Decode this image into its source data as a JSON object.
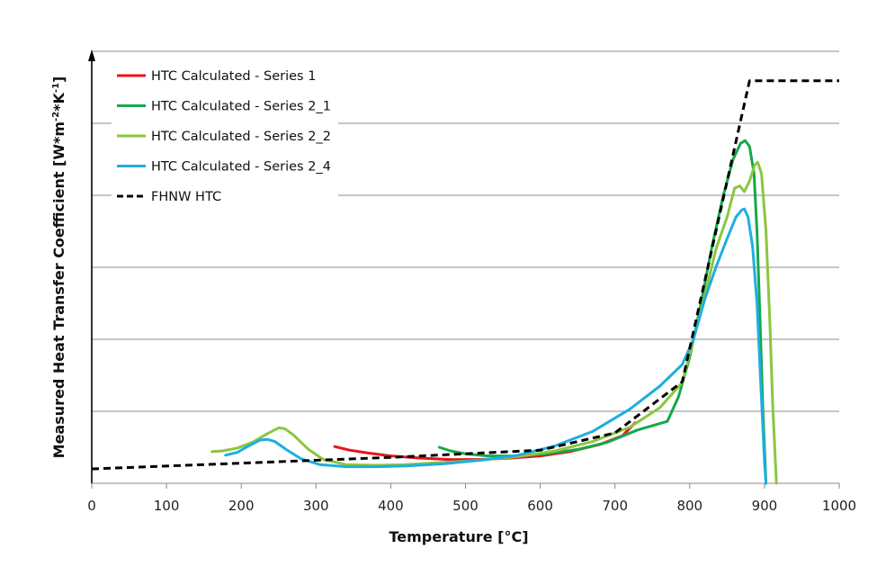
{
  "chart_data": {
    "type": "line",
    "title": "",
    "xlabel": "Temperature  [°C]",
    "ylabel_main": "Measured Heat Transfer Coefficient [W*m",
    "ylabel_sup1": "-2",
    "ylabel_mid": "*K",
    "ylabel_sup2": "-1",
    "ylabel_end": "]",
    "ylabel_note": "No y tick labels shown; y values are relative units where one gridline spacing = 1",
    "xlim": [
      0,
      1000
    ],
    "ylim": [
      0,
      6
    ],
    "xticks": [
      0,
      100,
      200,
      300,
      400,
      500,
      600,
      700,
      800,
      900,
      1000
    ],
    "ygrid": [
      1,
      2,
      3,
      4,
      5,
      6
    ],
    "grid": true,
    "legend_position": "top-left",
    "series": [
      {
        "name": "HTC Calculated - Series 1",
        "color": "#e8131b",
        "style": "solid",
        "points": [
          [
            325,
            0.51
          ],
          [
            345,
            0.46
          ],
          [
            370,
            0.42
          ],
          [
            400,
            0.38
          ],
          [
            440,
            0.35
          ],
          [
            480,
            0.33
          ],
          [
            520,
            0.33
          ],
          [
            560,
            0.35
          ],
          [
            600,
            0.38
          ],
          [
            640,
            0.44
          ],
          [
            680,
            0.54
          ],
          [
            710,
            0.66
          ],
          [
            727,
            0.84
          ]
        ]
      },
      {
        "name": "HTC Calculated - Series 2_1",
        "color": "#14a84a",
        "style": "solid",
        "points": [
          [
            465,
            0.5
          ],
          [
            480,
            0.45
          ],
          [
            500,
            0.41
          ],
          [
            530,
            0.38
          ],
          [
            570,
            0.38
          ],
          [
            610,
            0.41
          ],
          [
            650,
            0.47
          ],
          [
            690,
            0.57
          ],
          [
            730,
            0.74
          ],
          [
            770,
            0.86
          ],
          [
            785,
            1.2
          ],
          [
            800,
            1.75
          ],
          [
            815,
            2.5
          ],
          [
            830,
            3.3
          ],
          [
            845,
            4.0
          ],
          [
            858,
            4.5
          ],
          [
            868,
            4.72
          ],
          [
            874,
            4.76
          ],
          [
            880,
            4.68
          ],
          [
            886,
            4.3
          ],
          [
            890,
            3.5
          ],
          [
            894,
            2.3
          ],
          [
            898,
            1.0
          ],
          [
            902,
            0.0
          ]
        ]
      },
      {
        "name": "HTC Calculated - Series 2_2",
        "color": "#8cc63f",
        "style": "solid",
        "points": [
          [
            161,
            0.44
          ],
          [
            175,
            0.45
          ],
          [
            195,
            0.49
          ],
          [
            215,
            0.57
          ],
          [
            235,
            0.69
          ],
          [
            250,
            0.77
          ],
          [
            258,
            0.76
          ],
          [
            270,
            0.67
          ],
          [
            290,
            0.47
          ],
          [
            310,
            0.33
          ],
          [
            340,
            0.26
          ],
          [
            380,
            0.25
          ],
          [
            420,
            0.26
          ],
          [
            470,
            0.29
          ],
          [
            520,
            0.32
          ],
          [
            570,
            0.37
          ],
          [
            620,
            0.45
          ],
          [
            670,
            0.58
          ],
          [
            720,
            0.78
          ],
          [
            760,
            1.05
          ],
          [
            790,
            1.4
          ],
          [
            805,
            2.0
          ],
          [
            820,
            2.6
          ],
          [
            835,
            3.25
          ],
          [
            850,
            3.7
          ],
          [
            860,
            4.1
          ],
          [
            867,
            4.13
          ],
          [
            873,
            4.05
          ],
          [
            880,
            4.2
          ],
          [
            887,
            4.42
          ],
          [
            891,
            4.46
          ],
          [
            896,
            4.3
          ],
          [
            902,
            3.5
          ],
          [
            907,
            2.3
          ],
          [
            911,
            1.1
          ],
          [
            916,
            0.0
          ]
        ]
      },
      {
        "name": "HTC Calculated - Series 2_4",
        "color": "#1eaee0",
        "style": "solid",
        "points": [
          [
            179,
            0.39
          ],
          [
            195,
            0.43
          ],
          [
            210,
            0.52
          ],
          [
            225,
            0.6
          ],
          [
            235,
            0.61
          ],
          [
            245,
            0.58
          ],
          [
            260,
            0.47
          ],
          [
            280,
            0.34
          ],
          [
            305,
            0.26
          ],
          [
            340,
            0.23
          ],
          [
            380,
            0.23
          ],
          [
            420,
            0.24
          ],
          [
            470,
            0.27
          ],
          [
            520,
            0.32
          ],
          [
            570,
            0.39
          ],
          [
            620,
            0.52
          ],
          [
            670,
            0.72
          ],
          [
            720,
            1.03
          ],
          [
            760,
            1.35
          ],
          [
            790,
            1.65
          ],
          [
            805,
            2.0
          ],
          [
            820,
            2.55
          ],
          [
            835,
            3.0
          ],
          [
            850,
            3.4
          ],
          [
            862,
            3.7
          ],
          [
            870,
            3.8
          ],
          [
            873,
            3.81
          ],
          [
            878,
            3.7
          ],
          [
            884,
            3.3
          ],
          [
            890,
            2.5
          ],
          [
            895,
            1.4
          ],
          [
            900,
            0.3
          ],
          [
            902,
            0.0
          ]
        ]
      },
      {
        "name": "FHNW HTC",
        "color": "#000000",
        "style": "dashed",
        "points": [
          [
            0,
            0.2
          ],
          [
            400,
            0.36
          ],
          [
            600,
            0.46
          ],
          [
            700,
            0.7
          ],
          [
            790,
            1.41
          ],
          [
            880,
            5.59
          ],
          [
            1000,
            5.59
          ]
        ]
      }
    ]
  }
}
